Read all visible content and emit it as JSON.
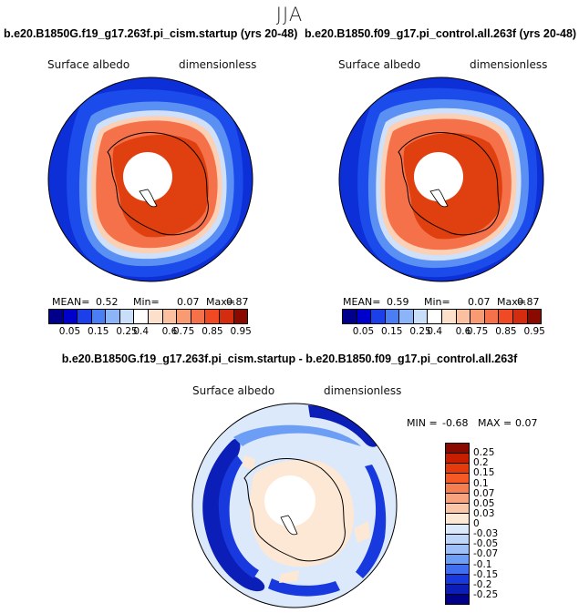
{
  "season": "JJA",
  "panels": [
    {
      "title": "b.e20.B1850G.f19_g17.263f.pi_cism.startup (yrs 20-48)",
      "variable": "Surface albedo",
      "units": "dimensionless",
      "mean_label": "MEAN=",
      "mean_value": "0.52",
      "min_label": "Min=",
      "min_value": "0.07",
      "max_label": "Max=",
      "max_value": "0.87"
    },
    {
      "title": "b.e20.B1850.f09_g17.pi_control.all.263f (yrs 20-48)",
      "variable": "Surface albedo",
      "units": "dimensionless",
      "mean_label": "MEAN=",
      "mean_value": "0.59",
      "min_label": "Min=",
      "min_value": "0.07",
      "max_label": "Max=",
      "max_value": "0.87"
    }
  ],
  "colorbar_abs": {
    "labels": [
      "0.05",
      "0.15",
      "0.25",
      "0.4",
      "0.6",
      "0.75",
      "0.85",
      "0.95"
    ],
    "colors": [
      "#00008a",
      "#0000cc",
      "#1b3fe8",
      "#4a7ef5",
      "#8bb5f8",
      "#c9def9",
      "#ffffff",
      "#fde0cc",
      "#fbc0a0",
      "#f89a72",
      "#f5714a",
      "#ef4a24",
      "#d42c0e",
      "#8a0a00"
    ]
  },
  "diff_panel": {
    "title": "b.e20.B1850G.f19_g17.263f.pi_cism.startup - b.e20.B1850.f09_g17.pi_control.all.263f",
    "variable": "Surface albedo",
    "units": "dimensionless",
    "min_label": "MIN =",
    "min_value": "-0.68",
    "max_label": "MAX =",
    "max_value": "0.07"
  },
  "colorbar_diff": {
    "labels": [
      "0.25",
      "0.2",
      "0.15",
      "0.1",
      "0.07",
      "0.05",
      "0.03",
      "0",
      "-0.03",
      "-0.05",
      "-0.07",
      "-0.1",
      "-0.15",
      "-0.2",
      "-0.25"
    ],
    "colors": [
      "#8a0a00",
      "#c81e00",
      "#e43a0c",
      "#f55a26",
      "#f67f52",
      "#f8a27e",
      "#fbc6a8",
      "#fde8d6",
      "#dbe9fb",
      "#bdd6fa",
      "#9dc0f8",
      "#6d9ef5",
      "#3f6ff0",
      "#1839dd",
      "#0b1fb8",
      "#00008a"
    ]
  }
}
